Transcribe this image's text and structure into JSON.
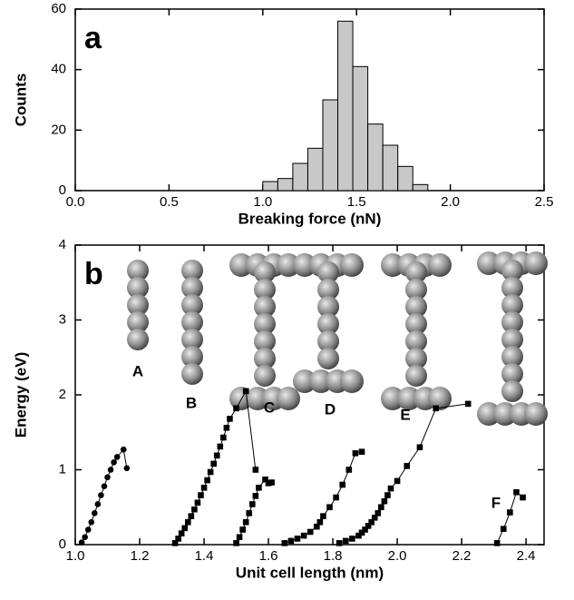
{
  "chart_data": [
    {
      "type": "histogram",
      "panel_label": "a",
      "xlabel": "Breaking force (nN)",
      "ylabel": "Counts",
      "bins": [
        1.0,
        1.08,
        1.16,
        1.24,
        1.32,
        1.4,
        1.48,
        1.56,
        1.64,
        1.72,
        1.8,
        1.88
      ],
      "values": [
        3,
        4,
        9,
        14,
        30,
        56,
        41,
        22,
        15,
        8,
        2
      ],
      "color": "#c8c8c8",
      "xlim": [
        0,
        2.5
      ],
      "xticks": [
        {
          "value": 0,
          "label": "0.0"
        },
        0.5,
        {
          "value": 1,
          "label": "1.0"
        },
        1.5,
        {
          "value": 2,
          "label": "2.0"
        },
        2.5
      ],
      "ylim": [
        0,
        60
      ],
      "yticks": [
        0,
        20,
        40,
        60
      ]
    },
    {
      "type": "scatter",
      "panel_label": "b",
      "xlabel": "Unit cell length (nm)",
      "ylabel": "Energy (eV)",
      "annotations": [
        "A",
        "B",
        "C",
        "D",
        "E",
        "F"
      ],
      "xlim": [
        1.0,
        2.456
      ],
      "xticks": [
        {
          "value": 1,
          "label": "1.0"
        },
        1.2,
        1.4,
        1.6,
        1.8,
        {
          "value": 2,
          "label": "2.0"
        },
        2.2,
        2.4
      ],
      "ylim": [
        0,
        4
      ],
      "yticks": [
        0,
        1,
        2,
        3,
        4
      ],
      "series": [
        {
          "color": "#000000",
          "marker": "circle",
          "x": [
            1.02,
            1.03,
            1.04,
            1.05,
            1.06,
            1.07,
            1.08,
            1.09,
            1.1,
            1.11,
            1.12,
            1.13,
            1.15,
            1.16
          ],
          "values": [
            0.03,
            0.1,
            0.2,
            0.3,
            0.42,
            0.54,
            0.66,
            0.78,
            0.9,
            1.0,
            1.1,
            1.17,
            1.27,
            1.02
          ]
        },
        {
          "color": "#000000",
          "marker": "square",
          "x": [
            1.31,
            1.32,
            1.33,
            1.34,
            1.35,
            1.36,
            1.37,
            1.38,
            1.39,
            1.4,
            1.41,
            1.42,
            1.43,
            1.44,
            1.45,
            1.46,
            1.47,
            1.48,
            1.5,
            1.53,
            1.56
          ],
          "values": [
            0.02,
            0.08,
            0.15,
            0.22,
            0.3,
            0.38,
            0.47,
            0.56,
            0.66,
            0.76,
            0.86,
            0.97,
            1.08,
            1.19,
            1.31,
            1.43,
            1.56,
            1.68,
            1.82,
            2.05,
            1.0
          ]
        },
        {
          "color": "#000000",
          "marker": "square",
          "x": [
            1.5,
            1.51,
            1.52,
            1.53,
            1.54,
            1.55,
            1.56,
            1.57,
            1.59,
            1.6,
            1.61
          ],
          "values": [
            0.02,
            0.1,
            0.2,
            0.3,
            0.42,
            0.54,
            0.65,
            0.76,
            0.87,
            0.82,
            0.83
          ]
        },
        {
          "color": "#000000",
          "marker": "square",
          "x": [
            1.65,
            1.67,
            1.69,
            1.71,
            1.73,
            1.75,
            1.76,
            1.77,
            1.79,
            1.81,
            1.83,
            1.85,
            1.87,
            1.89
          ],
          "values": [
            0.02,
            0.05,
            0.08,
            0.12,
            0.17,
            0.24,
            0.3,
            0.38,
            0.5,
            0.63,
            0.8,
            1.0,
            1.22,
            1.24
          ]
        },
        {
          "color": "#000000",
          "marker": "square",
          "x": [
            1.82,
            1.84,
            1.86,
            1.88,
            1.89,
            1.9,
            1.91,
            1.92,
            1.93,
            1.94,
            1.95,
            1.96,
            1.97,
            1.98,
            2.0,
            2.03,
            2.07,
            2.12,
            2.22
          ],
          "values": [
            0.02,
            0.05,
            0.08,
            0.12,
            0.16,
            0.2,
            0.25,
            0.3,
            0.36,
            0.42,
            0.5,
            0.58,
            0.66,
            0.75,
            0.85,
            1.05,
            1.3,
            1.82,
            1.88
          ]
        },
        {
          "color": "#000000",
          "marker": "square",
          "x": [
            2.31,
            2.33,
            2.35,
            2.37,
            2.39
          ],
          "values": [
            0.02,
            0.21,
            0.43,
            0.7,
            0.63
          ]
        }
      ]
    }
  ]
}
